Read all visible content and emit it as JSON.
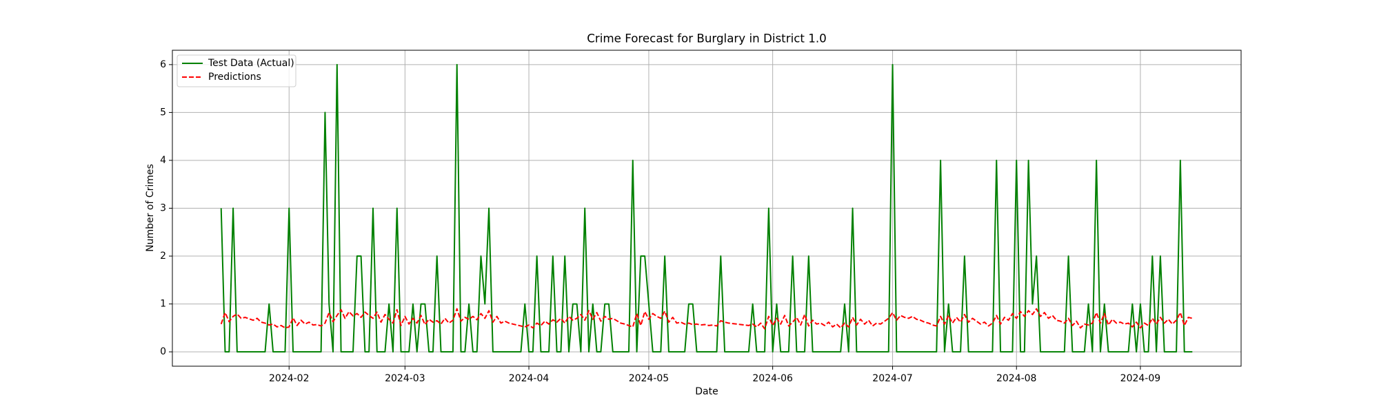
{
  "chart_data": {
    "type": "line",
    "title": "Crime Forecast for Burglary in District 1.0",
    "x_label": "Date",
    "y_label": "Number of Crimes",
    "x": [
      14,
      15,
      16,
      17,
      18,
      19,
      20,
      21,
      22,
      23,
      24,
      25,
      26,
      27,
      28,
      29,
      30,
      31,
      32,
      33,
      34,
      35,
      36,
      37,
      38,
      39,
      40,
      41,
      42,
      43,
      44,
      45,
      46,
      47,
      48,
      49,
      50,
      51,
      52,
      53,
      54,
      55,
      56,
      57,
      58,
      59,
      60,
      61,
      62,
      63,
      64,
      65,
      66,
      67,
      68,
      69,
      70,
      71,
      72,
      73,
      74,
      75,
      76,
      77,
      78,
      79,
      80,
      81,
      82,
      83,
      84,
      85,
      86,
      87,
      88,
      89,
      90,
      91,
      92,
      93,
      94,
      95,
      96,
      97,
      98,
      99,
      100,
      101,
      102,
      103,
      104,
      105,
      106,
      107,
      108,
      109,
      110,
      111,
      112,
      113,
      114,
      115,
      116,
      117,
      118,
      119,
      120,
      121,
      122,
      123,
      124,
      125,
      126,
      127,
      128,
      129,
      130,
      131,
      132,
      133,
      134,
      135,
      136,
      137,
      138,
      139,
      140,
      141,
      142,
      143,
      144,
      145,
      146,
      147,
      148,
      149,
      150,
      151,
      152,
      153,
      154,
      155,
      156,
      157,
      158,
      159,
      160,
      161,
      162,
      163,
      164,
      165,
      166,
      167,
      168,
      169,
      170,
      171,
      172,
      173,
      174,
      175,
      176,
      177,
      178,
      179,
      180,
      181,
      182,
      183,
      184,
      185,
      186,
      187,
      188,
      189,
      190,
      191,
      192,
      193,
      194,
      195,
      196,
      197,
      198,
      199,
      200,
      201,
      202,
      203,
      204,
      205,
      206,
      207,
      208,
      209,
      210,
      211,
      212,
      213,
      214,
      215,
      216,
      217,
      218,
      219,
      220,
      221,
      222,
      223,
      224,
      225,
      226,
      227,
      228,
      229,
      230,
      231,
      232,
      233,
      234,
      235,
      236,
      237,
      238,
      239,
      240,
      241,
      242,
      243,
      244,
      245,
      246,
      247,
      248,
      249,
      250,
      251,
      252,
      253,
      254,
      255,
      256,
      257
    ],
    "series": [
      {
        "name": "Test Data (Actual)",
        "color": "#008000",
        "linestyle": "solid",
        "values": [
          3,
          0,
          0,
          3,
          0,
          0,
          0,
          0,
          0,
          0,
          0,
          0,
          1,
          0,
          0,
          0,
          0,
          3,
          0,
          0,
          0,
          0,
          0,
          0,
          0,
          0,
          5,
          1,
          0,
          6,
          0,
          0,
          0,
          0,
          2,
          2,
          0,
          0,
          3,
          0,
          0,
          0,
          1,
          0,
          3,
          0,
          0,
          0,
          1,
          0,
          1,
          1,
          0,
          0,
          2,
          0,
          0,
          0,
          0,
          6,
          0,
          0,
          1,
          0,
          0,
          2,
          1,
          3,
          0,
          0,
          0,
          0,
          0,
          0,
          0,
          0,
          1,
          0,
          0,
          2,
          0,
          0,
          0,
          2,
          0,
          0,
          2,
          0,
          1,
          1,
          0,
          3,
          0,
          1,
          0,
          0,
          1,
          1,
          0,
          0,
          0,
          0,
          0,
          4,
          0,
          2,
          2,
          1,
          0,
          0,
          0,
          2,
          0,
          0,
          0,
          0,
          0,
          1,
          1,
          0,
          0,
          0,
          0,
          0,
          0,
          2,
          0,
          0,
          0,
          0,
          0,
          0,
          0,
          1,
          0,
          0,
          0,
          3,
          0,
          1,
          0,
          0,
          0,
          2,
          0,
          0,
          0,
          2,
          0,
          0,
          0,
          0,
          0,
          0,
          0,
          0,
          1,
          0,
          3,
          0,
          0,
          0,
          0,
          0,
          0,
          0,
          0,
          0,
          6,
          0,
          0,
          0,
          0,
          0,
          0,
          0,
          0,
          0,
          0,
          0,
          4,
          0,
          1,
          0,
          0,
          0,
          2,
          0,
          0,
          0,
          0,
          0,
          0,
          0,
          4,
          0,
          0,
          0,
          0,
          4,
          0,
          0,
          4,
          1,
          2,
          0,
          0,
          0,
          0,
          0,
          0,
          0,
          2,
          0,
          0,
          0,
          0,
          1,
          0,
          4,
          0,
          1,
          0,
          0,
          0,
          0,
          0,
          0,
          1,
          0,
          1,
          0,
          0,
          2,
          0,
          2,
          0,
          0,
          0,
          0,
          4,
          0,
          0,
          0
        ]
      },
      {
        "name": "Predictions",
        "color": "#ff0000",
        "linestyle": "dashed",
        "values": [
          0.58,
          0.82,
          0.63,
          0.74,
          0.79,
          0.7,
          0.72,
          0.69,
          0.66,
          0.7,
          0.62,
          0.6,
          0.56,
          0.58,
          0.52,
          0.55,
          0.5,
          0.52,
          0.71,
          0.55,
          0.66,
          0.58,
          0.62,
          0.56,
          0.57,
          0.54,
          0.6,
          0.82,
          0.63,
          0.76,
          0.88,
          0.7,
          0.84,
          0.75,
          0.8,
          0.72,
          0.83,
          0.76,
          0.7,
          0.83,
          0.62,
          0.78,
          0.68,
          0.6,
          0.88,
          0.55,
          0.74,
          0.58,
          0.7,
          0.6,
          0.76,
          0.57,
          0.68,
          0.62,
          0.65,
          0.58,
          0.7,
          0.6,
          0.66,
          0.9,
          0.64,
          0.72,
          0.68,
          0.74,
          0.67,
          0.8,
          0.7,
          0.86,
          0.62,
          0.74,
          0.6,
          0.64,
          0.6,
          0.58,
          0.56,
          0.54,
          0.52,
          0.56,
          0.5,
          0.6,
          0.55,
          0.64,
          0.58,
          0.67,
          0.62,
          0.7,
          0.6,
          0.74,
          0.66,
          0.7,
          0.78,
          0.66,
          0.86,
          0.68,
          0.82,
          0.64,
          0.74,
          0.68,
          0.7,
          0.65,
          0.6,
          0.58,
          0.55,
          0.52,
          0.8,
          0.55,
          0.84,
          0.68,
          0.8,
          0.74,
          0.7,
          0.85,
          0.62,
          0.72,
          0.6,
          0.62,
          0.58,
          0.6,
          0.57,
          0.58,
          0.56,
          0.57,
          0.55,
          0.56,
          0.54,
          0.65,
          0.62,
          0.6,
          0.59,
          0.58,
          0.57,
          0.56,
          0.55,
          0.58,
          0.52,
          0.6,
          0.48,
          0.74,
          0.55,
          0.7,
          0.58,
          0.76,
          0.54,
          0.62,
          0.72,
          0.56,
          0.78,
          0.54,
          0.66,
          0.58,
          0.6,
          0.55,
          0.62,
          0.52,
          0.58,
          0.5,
          0.6,
          0.52,
          0.72,
          0.56,
          0.68,
          0.58,
          0.66,
          0.54,
          0.6,
          0.58,
          0.64,
          0.7,
          0.82,
          0.66,
          0.76,
          0.72,
          0.7,
          0.74,
          0.68,
          0.66,
          0.62,
          0.6,
          0.56,
          0.54,
          0.74,
          0.58,
          0.76,
          0.6,
          0.72,
          0.62,
          0.78,
          0.62,
          0.7,
          0.64,
          0.58,
          0.62,
          0.54,
          0.6,
          0.76,
          0.58,
          0.72,
          0.66,
          0.8,
          0.7,
          0.84,
          0.74,
          0.86,
          0.78,
          0.9,
          0.74,
          0.82,
          0.7,
          0.76,
          0.66,
          0.64,
          0.6,
          0.7,
          0.55,
          0.64,
          0.5,
          0.58,
          0.56,
          0.6,
          0.82,
          0.6,
          0.8,
          0.56,
          0.68,
          0.6,
          0.62,
          0.58,
          0.6,
          0.52,
          0.62,
          0.5,
          0.6,
          0.55,
          0.7,
          0.58,
          0.72,
          0.6,
          0.68,
          0.58,
          0.66,
          0.82,
          0.55,
          0.72,
          0.7
        ]
      }
    ],
    "xlim": [
      1.8,
      269.2
    ],
    "xticks": [
      {
        "value": 31,
        "label": "2024-02"
      },
      {
        "value": 60,
        "label": "2024-03"
      },
      {
        "value": 91,
        "label": "2024-04"
      },
      {
        "value": 121,
        "label": "2024-05"
      },
      {
        "value": 152,
        "label": "2024-06"
      },
      {
        "value": 182,
        "label": "2024-07"
      },
      {
        "value": 213,
        "label": "2024-08"
      },
      {
        "value": 244,
        "label": "2024-09"
      }
    ],
    "ylim": [
      -0.3,
      6.3
    ],
    "yticks": [
      0,
      1,
      2,
      3,
      4,
      5,
      6
    ],
    "grid": true,
    "legend": "upper left"
  }
}
